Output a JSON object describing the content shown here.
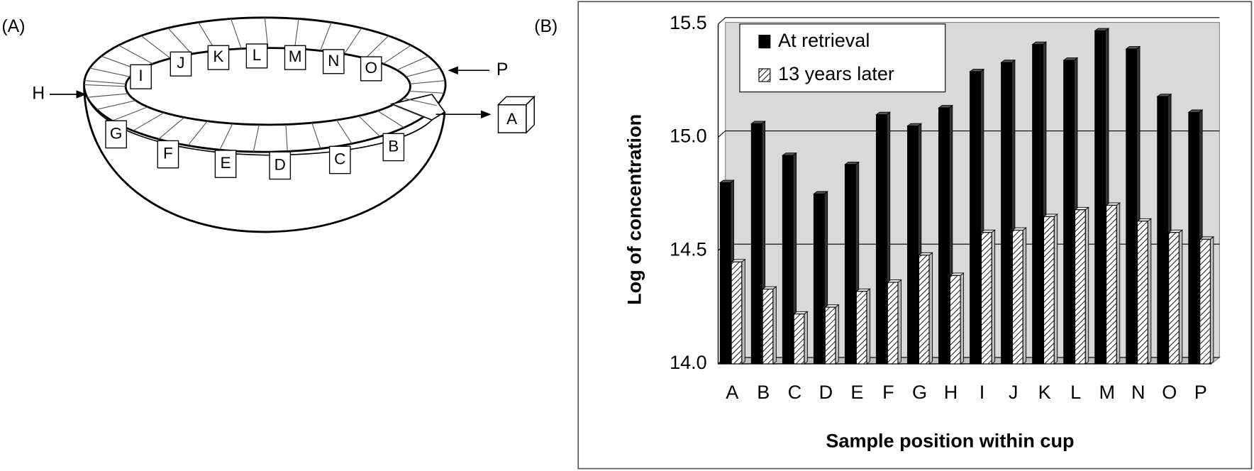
{
  "panel_labels": [
    "(A)",
    "(B)"
  ],
  "diagram": {
    "inner_labels": [
      "I",
      "J",
      "K",
      "L",
      "M",
      "N",
      "O"
    ],
    "outer_labels": [
      "G",
      "F",
      "E",
      "D",
      "C",
      "B"
    ],
    "left_arrow_label": "H",
    "right_arrow_label": "P",
    "removed_sample_label": "A"
  },
  "chart_data": {
    "type": "bar",
    "x_label": "Sample position within cup",
    "y_label": "Log of concentration",
    "categories": [
      "A",
      "B",
      "C",
      "D",
      "E",
      "F",
      "G",
      "H",
      "I",
      "J",
      "K",
      "L",
      "M",
      "N",
      "O",
      "P"
    ],
    "series": [
      {
        "name": "At retrieval",
        "color": "#000000",
        "values": [
          14.8,
          15.06,
          14.92,
          14.75,
          14.88,
          15.1,
          15.05,
          15.13,
          15.29,
          15.33,
          15.41,
          15.34,
          15.47,
          15.39,
          15.18,
          15.11
        ]
      },
      {
        "name": "13 years later",
        "color": "hatched",
        "values": [
          14.45,
          14.33,
          14.22,
          14.25,
          14.32,
          14.36,
          14.48,
          14.39,
          14.58,
          14.59,
          14.65,
          14.68,
          14.7,
          14.63,
          14.58,
          14.55
        ]
      }
    ],
    "ylim": [
      14.0,
      15.5
    ],
    "yticks": [
      {
        "value": 14.0,
        "label": "14.0"
      },
      {
        "value": 14.5,
        "label": "14.5"
      },
      {
        "value": 15.0,
        "label": "15.0"
      },
      {
        "value": 15.5,
        "label": "15.5"
      }
    ],
    "grid": true,
    "legend": "upper-left"
  }
}
